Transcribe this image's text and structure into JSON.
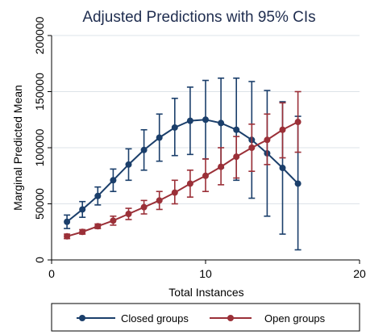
{
  "chart_data": {
    "type": "line",
    "title": "Adjusted Predictions with 95% CIs",
    "xlabel": "Total Instances",
    "ylabel": "Marginal Predicted Mean",
    "xlim": [
      0,
      20
    ],
    "ylim": [
      0,
      200000
    ],
    "xticks": [
      0,
      10,
      20
    ],
    "xtick_labels": [
      "0",
      "10",
      "20"
    ],
    "yticks": [
      0,
      50000,
      100000,
      150000,
      200000
    ],
    "ytick_labels": [
      "0",
      "50000",
      "100000",
      "150000",
      "200000"
    ],
    "grid": true,
    "legend_position": "bottom",
    "x": [
      1,
      2,
      3,
      4,
      5,
      6,
      7,
      8,
      9,
      10,
      11,
      12,
      13,
      14,
      15,
      16
    ],
    "series": [
      {
        "name": "Closed groups",
        "color": "#1b3f6b",
        "values": [
          34000,
          45000,
          57000,
          71000,
          85000,
          98000,
          109000,
          118000,
          124000,
          125000,
          122000,
          116000,
          107000,
          95000,
          82000,
          68000
        ],
        "ci_low": [
          28000,
          38000,
          49000,
          61000,
          71000,
          80000,
          88000,
          93000,
          94000,
          90000,
          82000,
          71000,
          55000,
          39000,
          23000,
          9000
        ],
        "ci_high": [
          40000,
          52000,
          65000,
          81000,
          99000,
          116000,
          130000,
          144000,
          154000,
          160000,
          162000,
          162000,
          159000,
          151000,
          141000,
          128000
        ]
      },
      {
        "name": "Open groups",
        "color": "#9b3038",
        "values": [
          21000,
          25000,
          30000,
          35000,
          41000,
          47000,
          53000,
          60000,
          68000,
          75000,
          83000,
          92000,
          100000,
          107000,
          116000,
          123000
        ],
        "ci_low": [
          19000,
          23000,
          28000,
          31000,
          36000,
          41000,
          45000,
          50000,
          56000,
          61000,
          67000,
          73000,
          79000,
          85000,
          91000,
          96000
        ],
        "ci_high": [
          23000,
          27000,
          32000,
          39000,
          46000,
          53000,
          61000,
          71000,
          80000,
          90000,
          100000,
          110000,
          121000,
          130000,
          140000,
          150000
        ]
      }
    ]
  }
}
